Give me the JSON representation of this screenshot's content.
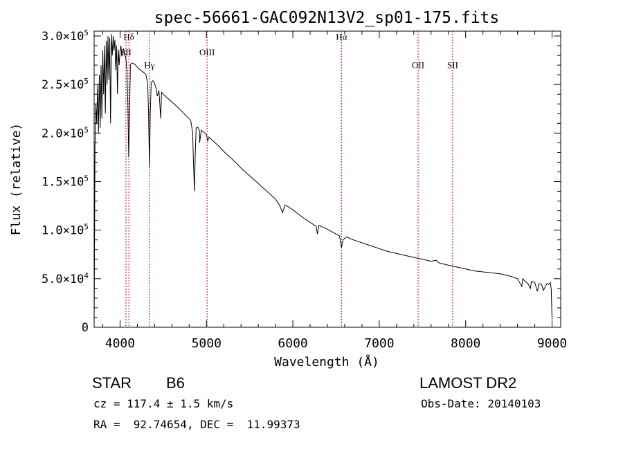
{
  "chart_data": {
    "type": "line",
    "title": "spec-56661-GAC092N13V2_sp01-175.fits",
    "xlabel": "Wavelength (Å)",
    "ylabel": "Flux (relative)",
    "xlim": [
      3700,
      9100
    ],
    "ylim": [
      0,
      305000
    ],
    "x_ticks": [
      4000,
      5000,
      6000,
      7000,
      8000,
      9000
    ],
    "x_tick_labels": [
      "4000",
      "5000",
      "6000",
      "7000",
      "8000",
      "9000"
    ],
    "y_ticks": [
      {
        "value": 0,
        "mantissa": "0",
        "exp": ""
      },
      {
        "value": 50000,
        "mantissa": "5.0×10",
        "exp": "4"
      },
      {
        "value": 100000,
        "mantissa": "1.0×10",
        "exp": "5"
      },
      {
        "value": 150000,
        "mantissa": "1.5×10",
        "exp": "5"
      },
      {
        "value": 200000,
        "mantissa": "2.0×10",
        "exp": "5"
      },
      {
        "value": 250000,
        "mantissa": "2.5×10",
        "exp": "5"
      },
      {
        "value": 300000,
        "mantissa": "3.0×10",
        "exp": "5"
      }
    ],
    "line_color": "#000000",
    "marker_color": "#cc0000",
    "series": [
      {
        "x": [
          3700,
          3710,
          3720,
          3730,
          3740,
          3750,
          3760,
          3770,
          3780,
          3790,
          3800,
          3810,
          3820,
          3830,
          3840,
          3850,
          3860,
          3870,
          3880,
          3890,
          3900,
          3910,
          3920,
          3930,
          3940,
          3950,
          3960,
          3970,
          3980,
          3990,
          4000,
          4010,
          4020,
          4030,
          4040,
          4050,
          4060,
          4070,
          4080,
          4090,
          4100,
          4110,
          4120,
          4130,
          4150,
          4180,
          4200,
          4220,
          4250,
          4280,
          4300,
          4320,
          4330,
          4340,
          4350,
          4360,
          4380,
          4400,
          4420,
          4430,
          4450,
          4471,
          4480,
          4500,
          4550,
          4600,
          4650,
          4700,
          4750,
          4800,
          4820,
          4840,
          4850,
          4861,
          4870,
          4880,
          4900,
          4920,
          4921,
          4940,
          4980,
          5000,
          5015,
          5030,
          5050,
          5100,
          5150,
          5200,
          5300,
          5400,
          5500,
          5600,
          5700,
          5800,
          5850,
          5880,
          5895,
          5910,
          5950,
          6000,
          6100,
          6200,
          6270,
          6284,
          6300,
          6400,
          6500,
          6540,
          6563,
          6580,
          6620,
          6700,
          6800,
          6900,
          7000,
          7100,
          7200,
          7300,
          7400,
          7500,
          7600,
          7660,
          7680,
          7700,
          7800,
          7900,
          8000,
          8100,
          8200,
          8300,
          8400,
          8500,
          8600,
          8650,
          8662,
          8680,
          8720,
          8750,
          8760,
          8800,
          8830,
          8850,
          8880,
          8900,
          8940,
          8960,
          8980,
          8990,
          9000
        ],
        "y": [
          3000,
          185000,
          230000,
          210000,
          250000,
          200000,
          260000,
          205000,
          270000,
          215000,
          285000,
          240000,
          290000,
          220000,
          295000,
          250000,
          300000,
          255000,
          298000,
          210000,
          302000,
          280000,
          300000,
          285000,
          296000,
          265000,
          290000,
          240000,
          286000,
          270000,
          285000,
          290000,
          280000,
          282000,
          287000,
          283000,
          280000,
          275000,
          265000,
          230000,
          175000,
          225000,
          270000,
          272000,
          272000,
          270000,
          268000,
          266000,
          264000,
          262000,
          260000,
          250000,
          220000,
          165000,
          220000,
          252000,
          254000,
          251000,
          245000,
          238000,
          244000,
          215000,
          242000,
          240000,
          236000,
          232000,
          228000,
          224000,
          219000,
          215000,
          212000,
          200000,
          170000,
          140000,
          175000,
          205000,
          206000,
          202000,
          190000,
          203000,
          200000,
          198000,
          192000,
          196000,
          194000,
          190000,
          186000,
          181000,
          173000,
          164000,
          156000,
          148000,
          140000,
          132000,
          125000,
          118000,
          122000,
          126000,
          124000,
          121000,
          114000,
          108000,
          104000,
          96000,
          105000,
          101000,
          96000,
          94000,
          82000,
          90000,
          93000,
          90000,
          87000,
          84000,
          81000,
          78000,
          76000,
          74000,
          72000,
          70000,
          68000,
          69000,
          67000,
          66000,
          64000,
          62000,
          60000,
          58000,
          57000,
          56000,
          55000,
          53000,
          50000,
          42000,
          50000,
          48000,
          45000,
          40000,
          47000,
          46000,
          37000,
          45000,
          44000,
          38000,
          45000,
          44000,
          46000,
          40000,
          8000
        ]
      }
    ],
    "line_markers": [
      {
        "label": "Hδ",
        "x": 4102,
        "label_y": 296000
      },
      {
        "label": "SII",
        "x": 4068,
        "label_y": 280000
      },
      {
        "label": "Hγ",
        "x": 4340,
        "label_y": 267000
      },
      {
        "label": "OIII",
        "x": 5007,
        "label_y": 280000
      },
      {
        "label": "Hα",
        "x": 6563,
        "label_y": 296000
      },
      {
        "label": "OII",
        "x": 7450,
        "label_y": 267000
      },
      {
        "label": "SII",
        "x": 7850,
        "label_y": 267000
      }
    ]
  },
  "info": {
    "object_type": "STAR",
    "subclass": "B6",
    "cz": "cz = 117.4 ± 1.5 km/s",
    "coords": "RA =  92.74654, DEC =  11.99373",
    "survey": "LAMOST DR2",
    "obs_date": "Obs-Date: 20140103"
  }
}
